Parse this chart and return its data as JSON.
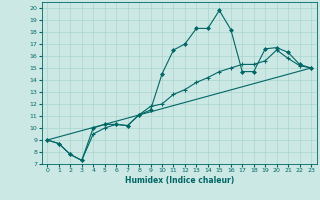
{
  "title": "",
  "xlabel": "Humidex (Indice chaleur)",
  "bg_color": "#cce8e4",
  "grid_color": "#aad4ce",
  "line_color": "#006666",
  "xlim": [
    -0.5,
    23.5
  ],
  "ylim": [
    7,
    20.5
  ],
  "xticks": [
    0,
    1,
    2,
    3,
    4,
    5,
    6,
    7,
    8,
    9,
    10,
    11,
    12,
    13,
    14,
    15,
    16,
    17,
    18,
    19,
    20,
    21,
    22,
    23
  ],
  "yticks": [
    7,
    8,
    9,
    10,
    11,
    12,
    13,
    14,
    15,
    16,
    17,
    18,
    19,
    20
  ],
  "line1_x": [
    0,
    1,
    2,
    3,
    4,
    5,
    6,
    7,
    8,
    9,
    10,
    11,
    12,
    13,
    14,
    15,
    16,
    17,
    18,
    19,
    20,
    21,
    22,
    23
  ],
  "line1_y": [
    9.0,
    8.7,
    7.8,
    7.3,
    10.0,
    10.3,
    10.3,
    10.2,
    11.1,
    11.5,
    14.5,
    16.5,
    17.0,
    18.3,
    18.3,
    19.8,
    18.2,
    14.7,
    14.7,
    16.6,
    16.7,
    16.3,
    15.3,
    15.0
  ],
  "line2_x": [
    0,
    1,
    2,
    3,
    4,
    5,
    6,
    7,
    8,
    9,
    10,
    11,
    12,
    13,
    14,
    15,
    16,
    17,
    18,
    19,
    20,
    21,
    22,
    23
  ],
  "line2_y": [
    9.0,
    8.7,
    7.8,
    7.3,
    9.5,
    10.0,
    10.3,
    10.2,
    11.1,
    11.8,
    12.0,
    12.8,
    13.2,
    13.8,
    14.2,
    14.7,
    15.0,
    15.3,
    15.3,
    15.6,
    16.5,
    15.8,
    15.2,
    15.0
  ],
  "line3_x": [
    0,
    23
  ],
  "line3_y": [
    9.0,
    15.0
  ]
}
